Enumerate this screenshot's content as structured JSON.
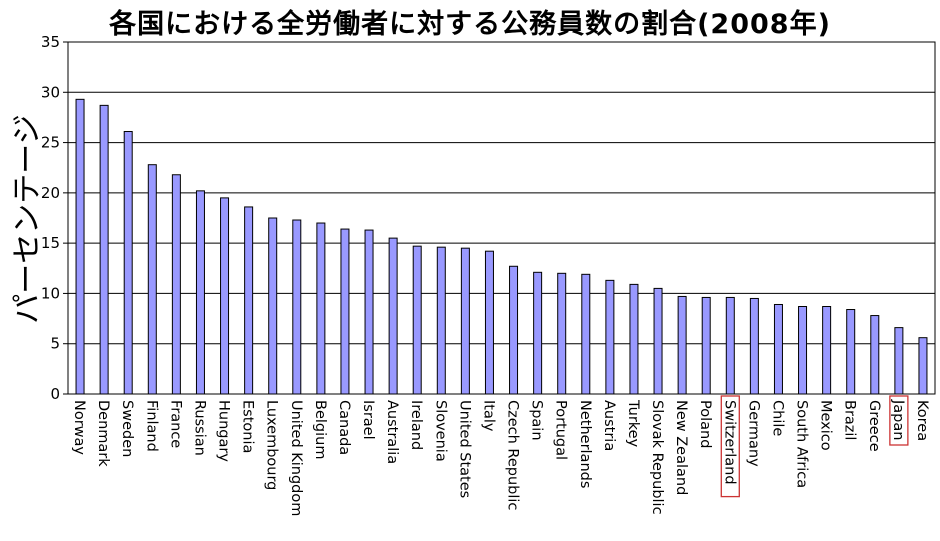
{
  "chart_data": {
    "type": "bar",
    "title": "各国における全労働者に対する公務員数の割合(2008年)",
    "ylabel": "パーセンテージ",
    "xlabel": "",
    "ylim": [
      0,
      35
    ],
    "yticks": [
      0,
      5,
      10,
      15,
      20,
      25,
      30,
      35
    ],
    "grid": true,
    "bar_color": "#9999ff",
    "highlight_color": "#cc3333",
    "highlighted": [
      "Switzerland",
      "Japan"
    ],
    "categories": [
      "Norway",
      "Denmark",
      "Sweden",
      "Finland",
      "France",
      "Russian",
      "Hungary",
      "Estonia",
      "Luxembourg",
      "United Kingdom",
      "Belgium",
      "Canada",
      "Israel",
      "Australia",
      "Ireland",
      "Slovenia",
      "United States",
      "Italy",
      "Czech Republic",
      "Spain",
      "Portugal",
      "Netherlands",
      "Austria",
      "Turkey",
      "Slovak Republic",
      "New Zealand",
      "Poland",
      "Switzerland",
      "Germany",
      "Chile",
      "South Africa",
      "Mexico",
      "Brazil",
      "Greece",
      "Japan",
      "Korea"
    ],
    "values": [
      29.3,
      28.7,
      26.1,
      22.8,
      21.8,
      20.2,
      19.5,
      18.6,
      17.5,
      17.3,
      17.0,
      16.4,
      16.3,
      15.5,
      14.7,
      14.6,
      14.5,
      14.2,
      12.7,
      12.1,
      12.0,
      11.9,
      11.3,
      10.9,
      10.5,
      9.7,
      9.6,
      9.6,
      9.5,
      8.9,
      8.7,
      8.7,
      8.4,
      7.8,
      6.6,
      5.6
    ]
  }
}
